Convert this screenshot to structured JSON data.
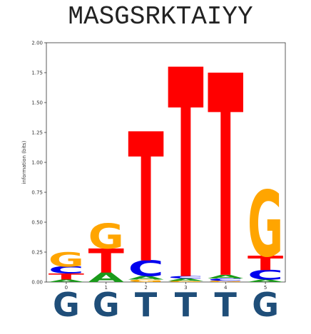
{
  "chart_data": {
    "type": "logo",
    "title": "MASGSRKTAIYY",
    "ylabel": "information (bits)",
    "categories": [
      "0",
      "1",
      "2",
      "3",
      "4",
      "5"
    ],
    "series": [
      {
        "name": "A",
        "color": "#1a9a1a",
        "values": [
          0.02,
          0.08,
          0.03,
          0.02,
          0.03,
          0.02
        ]
      },
      {
        "name": "C",
        "color": "#0000ee",
        "values": [
          0.06,
          0.0,
          0.13,
          0.02,
          0.02,
          0.08
        ]
      },
      {
        "name": "G",
        "color": "#ffa500",
        "values": [
          0.12,
          0.21,
          0.02,
          0.01,
          0.01,
          0.55
        ]
      },
      {
        "name": "T",
        "color": "#ff0000",
        "values": [
          0.05,
          0.2,
          1.08,
          1.75,
          1.69,
          0.12
        ]
      }
    ],
    "ylim": [
      0,
      2
    ],
    "yticks": [
      {
        "value": 0,
        "label": "0.00"
      },
      {
        "value": 0.25,
        "label": "0.25"
      },
      {
        "value": 0.5,
        "label": "0.50"
      },
      {
        "value": 0.75,
        "label": "0.75"
      },
      {
        "value": 1,
        "label": "1.00"
      },
      {
        "value": 1.25,
        "label": "1.25"
      },
      {
        "value": 1.5,
        "label": "1.50"
      },
      {
        "value": 1.75,
        "label": "1.75"
      },
      {
        "value": 2,
        "label": "2.00"
      }
    ],
    "consensus": [
      "G",
      "G",
      "T",
      "T",
      "T",
      "G"
    ],
    "consensus_color": "#1f4e79"
  }
}
